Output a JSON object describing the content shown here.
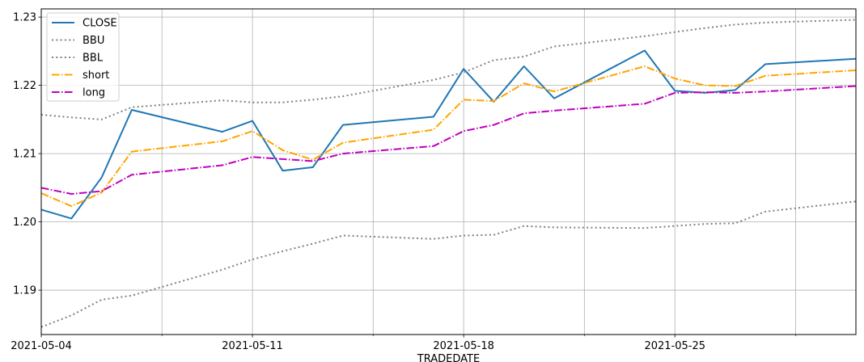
{
  "chart_data": {
    "type": "line",
    "xlabel": "TRADEDATE",
    "ylabel": "",
    "x": [
      "2021-05-04",
      "2021-05-05",
      "2021-05-06",
      "2021-05-07",
      "2021-05-10",
      "2021-05-11",
      "2021-05-12",
      "2021-05-13",
      "2021-05-14",
      "2021-05-17",
      "2021-05-18",
      "2021-05-19",
      "2021-05-20",
      "2021-05-21",
      "2021-05-24",
      "2021-05-25",
      "2021-05-26",
      "2021-05-27",
      "2021-05-28",
      "2021-05-31"
    ],
    "xlim": [
      "2021-05-04",
      "2021-05-31"
    ],
    "ylim": [
      1.1835,
      1.2312
    ],
    "x_major_ticks": [
      "2021-05-04",
      "2021-05-11",
      "2021-05-18",
      "2021-05-25"
    ],
    "x_minor_ticks": [
      "2021-05-08",
      "2021-05-15",
      "2021-05-22",
      "2021-05-29"
    ],
    "y_ticks": [
      1.19,
      1.2,
      1.21,
      1.22,
      1.23
    ],
    "y_tick_labels": [
      "1.19",
      "1.20",
      "1.21",
      "1.22",
      "1.23"
    ],
    "grid": true,
    "legend_position": "top-left",
    "series": [
      {
        "name": "CLOSE",
        "color": "#1f77b4",
        "style": "solid",
        "values": [
          1.2018,
          1.2005,
          1.2065,
          1.2164,
          1.2132,
          1.2148,
          1.2075,
          1.208,
          1.2142,
          1.2154,
          1.2224,
          1.2176,
          1.2228,
          1.2181,
          1.2251,
          1.2192,
          1.2189,
          1.2193,
          1.2231,
          1.2239
        ]
      },
      {
        "name": "BBU",
        "color": "#808080",
        "style": "dotted",
        "values": [
          1.2157,
          1.2153,
          1.215,
          1.2168,
          1.2178,
          1.2175,
          1.2175,
          1.2179,
          1.2184,
          1.2208,
          1.2219,
          1.2237,
          1.2242,
          1.2257,
          1.2272,
          1.2278,
          1.2284,
          1.2289,
          1.2292,
          1.2296
        ]
      },
      {
        "name": "BBL",
        "color": "#808080",
        "style": "dotted",
        "values": [
          1.1846,
          1.1863,
          1.1886,
          1.1892,
          1.193,
          1.1945,
          1.1957,
          1.1968,
          1.198,
          1.1975,
          1.198,
          1.1981,
          1.1994,
          1.1992,
          1.1991,
          1.1994,
          1.1997,
          1.1998,
          1.2015,
          1.203
        ]
      },
      {
        "name": "short",
        "color": "#ffa500",
        "style": "dashdot",
        "values": [
          1.2042,
          1.2023,
          1.2043,
          1.2103,
          1.2118,
          1.2133,
          1.2105,
          1.2091,
          1.2116,
          1.2135,
          1.2179,
          1.2177,
          1.2203,
          1.2191,
          1.2228,
          1.221,
          1.22,
          1.2199,
          1.2214,
          1.2222
        ]
      },
      {
        "name": "long",
        "color": "#bf00bf",
        "style": "dashdot",
        "values": [
          1.205,
          1.2041,
          1.2045,
          1.2069,
          1.2083,
          1.2095,
          1.2092,
          1.2089,
          1.21,
          1.2111,
          1.2133,
          1.2142,
          1.2159,
          1.2163,
          1.2173,
          1.2189,
          1.219,
          1.2189,
          1.2191,
          1.2199
        ]
      }
    ]
  }
}
